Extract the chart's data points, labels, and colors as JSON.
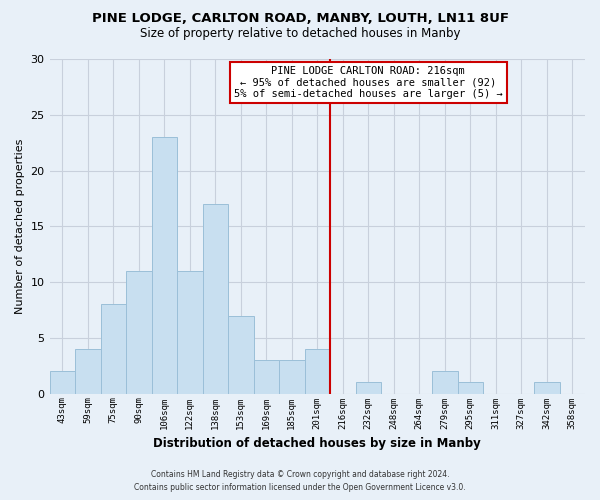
{
  "title": "PINE LODGE, CARLTON ROAD, MANBY, LOUTH, LN11 8UF",
  "subtitle": "Size of property relative to detached houses in Manby",
  "xlabel": "Distribution of detached houses by size in Manby",
  "ylabel": "Number of detached properties",
  "bin_labels": [
    "43sqm",
    "59sqm",
    "75sqm",
    "90sqm",
    "106sqm",
    "122sqm",
    "138sqm",
    "153sqm",
    "169sqm",
    "185sqm",
    "201sqm",
    "216sqm",
    "232sqm",
    "248sqm",
    "264sqm",
    "279sqm",
    "295sqm",
    "311sqm",
    "327sqm",
    "342sqm",
    "358sqm"
  ],
  "bin_counts": [
    2,
    4,
    8,
    11,
    23,
    11,
    17,
    7,
    3,
    3,
    4,
    0,
    1,
    0,
    0,
    2,
    1,
    0,
    0,
    1,
    0
  ],
  "bar_color": "#c8dff0",
  "bar_edge_color": "#9bbfd8",
  "vline_x": 10.5,
  "vline_color": "#cc0000",
  "ylim": [
    0,
    30
  ],
  "yticks": [
    0,
    5,
    10,
    15,
    20,
    25,
    30
  ],
  "annotation_title": "PINE LODGE CARLTON ROAD: 216sqm",
  "annotation_line1": "← 95% of detached houses are smaller (92)",
  "annotation_line2": "5% of semi-detached houses are larger (5) →",
  "footer_line1": "Contains HM Land Registry data © Crown copyright and database right 2024.",
  "footer_line2": "Contains public sector information licensed under the Open Government Licence v3.0.",
  "background_color": "#e8f0f8",
  "grid_color": "#c8d0dc"
}
